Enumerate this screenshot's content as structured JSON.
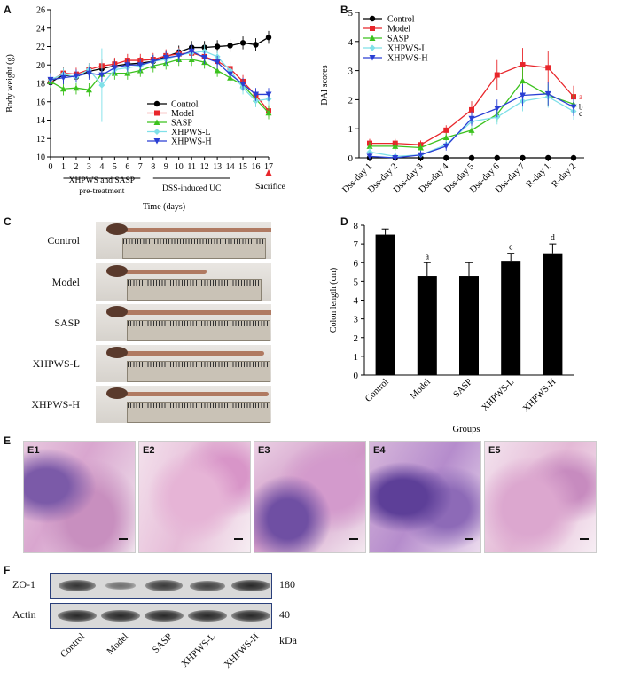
{
  "panels": {
    "A": "A",
    "B": "B",
    "C": "C",
    "D": "D",
    "E": "E",
    "F": "F"
  },
  "colors": {
    "control": "#000000",
    "model": "#e8262b",
    "sasp": "#3cc21e",
    "xhpws_l": "#7fe0e8",
    "xhpws_h": "#2a3fd4",
    "bar": "#000000"
  },
  "chart_data": [
    {
      "type": "line",
      "ylabel": "Body weight (g)",
      "xlabel": "Time (days)",
      "ylim": [
        10,
        26
      ],
      "xlim": [
        0,
        17
      ],
      "yticks": [
        "10",
        "12",
        "14",
        "16",
        "18",
        "20",
        "22",
        "24",
        "26"
      ],
      "xticks": [
        "0",
        "1",
        "2",
        "3",
        "4",
        "5",
        "6",
        "7",
        "8",
        "9",
        "10",
        "11",
        "12",
        "13",
        "14",
        "15",
        "16",
        "17"
      ],
      "annotations": {
        "pretreat1": "XHPWS and SASP",
        "pretreat2": "pre-treatment",
        "dss": "DSS-induced UC",
        "sacrifice": "Sacrifice"
      },
      "legend_position": "center-right",
      "x": [
        0,
        1,
        2,
        3,
        4,
        5,
        6,
        7,
        8,
        9,
        10,
        11,
        12,
        13,
        14,
        15,
        16,
        17
      ],
      "series": [
        {
          "name": "Control",
          "values": [
            18.1,
            18.9,
            18.7,
            19.3,
            19.6,
            19.9,
            20.1,
            20.2,
            20.4,
            20.9,
            21.4,
            21.9,
            21.9,
            22.0,
            22.1,
            22.4,
            22.2,
            23.0
          ]
        },
        {
          "name": "Model",
          "values": [
            18.3,
            19.1,
            19.0,
            19.5,
            19.9,
            20.1,
            20.5,
            20.5,
            20.6,
            21.0,
            21.2,
            21.3,
            20.9,
            20.4,
            19.6,
            18.2,
            16.7,
            15.0
          ]
        },
        {
          "name": "SASP",
          "values": [
            18.2,
            17.4,
            17.5,
            17.3,
            19.0,
            19.1,
            19.1,
            19.4,
            19.9,
            20.2,
            20.6,
            20.6,
            20.3,
            19.4,
            18.6,
            17.8,
            16.3,
            14.8
          ]
        },
        {
          "name": "XHPWS-L",
          "values": [
            18.4,
            19.0,
            18.7,
            19.5,
            17.8,
            19.5,
            19.7,
            19.9,
            20.4,
            20.6,
            21.1,
            21.3,
            21.5,
            20.9,
            19.4,
            17.5,
            16.1,
            16.3
          ]
        },
        {
          "name": "XHPWS-H",
          "values": [
            18.4,
            18.6,
            18.8,
            19.1,
            18.9,
            19.7,
            20.0,
            20.0,
            20.4,
            20.8,
            21.0,
            21.5,
            20.8,
            20.3,
            19.0,
            17.9,
            16.8,
            16.8
          ]
        }
      ]
    },
    {
      "type": "line",
      "ylabel": "DAI scores",
      "ylim": [
        0,
        5
      ],
      "yticks": [
        "0",
        "1",
        "2",
        "3",
        "4",
        "5"
      ],
      "categories": [
        "Dss-day 1",
        "Dss-day 2",
        "Dss-day 3",
        "Dss-day 4",
        "Dss-day 5",
        "Dss-day 6",
        "Dss-day 7",
        "R-day 1",
        "R-day 2"
      ],
      "legend_position": "top-left",
      "end_labels": [
        "a",
        "b",
        "c"
      ],
      "series": [
        {
          "name": "Control",
          "values": [
            0,
            0,
            0,
            0,
            0,
            0,
            0,
            0,
            0
          ]
        },
        {
          "name": "Model",
          "values": [
            0.5,
            0.5,
            0.45,
            0.95,
            1.65,
            2.85,
            3.2,
            3.1,
            2.1
          ]
        },
        {
          "name": "SASP",
          "values": [
            0.4,
            0.4,
            0.35,
            0.7,
            0.95,
            1.5,
            2.65,
            2.15,
            1.85
          ]
        },
        {
          "name": "XHPWS-L",
          "values": [
            0.2,
            0.05,
            0.1,
            0.45,
            1.25,
            1.4,
            1.95,
            2.1,
            1.6
          ]
        },
        {
          "name": "XHPWS-H",
          "values": [
            0.05,
            0.0,
            0.1,
            0.4,
            1.35,
            1.7,
            2.15,
            2.2,
            1.75
          ]
        }
      ]
    },
    {
      "type": "bar",
      "ylabel": "Colon length (cm)",
      "xlabel": "Groups",
      "ylim": [
        0,
        8
      ],
      "yticks": [
        "0",
        "1",
        "2",
        "3",
        "4",
        "5",
        "6",
        "7",
        "8"
      ],
      "categories": [
        "Control",
        "Model",
        "SASP",
        "XHPWS-L",
        "XHPWS-H"
      ],
      "values": [
        7.5,
        5.3,
        5.3,
        6.1,
        6.5
      ],
      "errors": [
        0.3,
        0.7,
        0.7,
        0.4,
        0.5
      ],
      "sig_labels": [
        "",
        "a",
        "",
        "c",
        "d"
      ]
    }
  ],
  "photos": {
    "labels": [
      "Control",
      "Model",
      "SASP",
      "XHPWS-L",
      "XHPWS-H"
    ]
  },
  "histology": {
    "labels": [
      "E1",
      "E2",
      "E3",
      "E4",
      "E5"
    ]
  },
  "western": {
    "rows": [
      "ZO-1",
      "Actin"
    ],
    "sizes": [
      "180",
      "40"
    ],
    "unit": "kDa",
    "lanes": [
      "Control",
      "Model",
      "SASP",
      "XHPWS-L",
      "XHPWS-H"
    ],
    "zo1_intensity": [
      0.85,
      0.35,
      0.8,
      0.75,
      0.95
    ]
  }
}
